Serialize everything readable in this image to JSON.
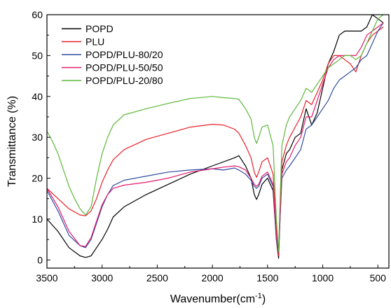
{
  "chart_data": {
    "type": "line",
    "title": "",
    "xlabel": "Wavenumber(cm",
    "xlabel_sup": "-1",
    "xlabel_close": ")",
    "ylabel": "Transmittance (%)",
    "xlim": [
      3500,
      400
    ],
    "ylim": [
      -2,
      60
    ],
    "x_ticks": [
      3500,
      3000,
      2500,
      2000,
      1500,
      1000,
      500
    ],
    "x_tick_labels": [
      "3500",
      "3000",
      "2500",
      "2000",
      "1500",
      "1000",
      "500"
    ],
    "y_ticks": [
      0,
      10,
      20,
      30,
      40,
      50,
      60
    ],
    "y_tick_labels": [
      "0",
      "10",
      "20",
      "30",
      "40",
      "50",
      "60"
    ],
    "grid": false,
    "legend_position": "top-left",
    "series": [
      {
        "name": "POPD",
        "color": "#000000",
        "points": [
          [
            3500,
            10
          ],
          [
            3400,
            7
          ],
          [
            3300,
            3
          ],
          [
            3200,
            1
          ],
          [
            3150,
            0.6
          ],
          [
            3100,
            1
          ],
          [
            3050,
            3
          ],
          [
            3000,
            5
          ],
          [
            2950,
            7.5
          ],
          [
            2900,
            10.5
          ],
          [
            2800,
            13
          ],
          [
            2600,
            16
          ],
          [
            2400,
            18.5
          ],
          [
            2200,
            21
          ],
          [
            2000,
            23
          ],
          [
            1800,
            25
          ],
          [
            1760,
            25.5
          ],
          [
            1700,
            23
          ],
          [
            1650,
            20
          ],
          [
            1620,
            16
          ],
          [
            1600,
            14.8
          ],
          [
            1580,
            16
          ],
          [
            1550,
            18.5
          ],
          [
            1500,
            20
          ],
          [
            1450,
            17
          ],
          [
            1420,
            5
          ],
          [
            1400,
            0.4
          ],
          [
            1390,
            8
          ],
          [
            1370,
            22
          ],
          [
            1330,
            26
          ],
          [
            1300,
            27
          ],
          [
            1250,
            30
          ],
          [
            1200,
            31
          ],
          [
            1150,
            37
          ],
          [
            1100,
            33
          ],
          [
            1050,
            36
          ],
          [
            1000,
            42
          ],
          [
            950,
            48
          ],
          [
            900,
            51
          ],
          [
            850,
            55
          ],
          [
            800,
            56
          ],
          [
            750,
            56
          ],
          [
            700,
            56
          ],
          [
            650,
            56
          ],
          [
            600,
            57
          ],
          [
            550,
            60
          ],
          [
            500,
            59
          ],
          [
            450,
            58
          ]
        ]
      },
      {
        "name": "PLU",
        "color": "#e8202a",
        "points": [
          [
            3500,
            17.5
          ],
          [
            3400,
            15
          ],
          [
            3300,
            12.5
          ],
          [
            3200,
            11
          ],
          [
            3150,
            10.8
          ],
          [
            3100,
            12
          ],
          [
            3050,
            15
          ],
          [
            3000,
            19
          ],
          [
            2950,
            22
          ],
          [
            2900,
            24.5
          ],
          [
            2800,
            27
          ],
          [
            2600,
            29.5
          ],
          [
            2400,
            31
          ],
          [
            2200,
            32.5
          ],
          [
            2000,
            33.2
          ],
          [
            1900,
            33
          ],
          [
            1800,
            32
          ],
          [
            1760,
            31
          ],
          [
            1700,
            28
          ],
          [
            1650,
            25
          ],
          [
            1620,
            21.5
          ],
          [
            1600,
            20.2
          ],
          [
            1580,
            21.5
          ],
          [
            1550,
            24
          ],
          [
            1500,
            25
          ],
          [
            1450,
            21
          ],
          [
            1420,
            8
          ],
          [
            1400,
            1
          ],
          [
            1390,
            10
          ],
          [
            1370,
            24
          ],
          [
            1330,
            28
          ],
          [
            1300,
            30
          ],
          [
            1250,
            32.5
          ],
          [
            1200,
            35
          ],
          [
            1150,
            39
          ],
          [
            1100,
            38
          ],
          [
            1050,
            41
          ],
          [
            1000,
            44
          ],
          [
            950,
            48
          ],
          [
            900,
            50
          ],
          [
            850,
            50
          ],
          [
            800,
            49
          ],
          [
            750,
            48
          ],
          [
            700,
            46
          ],
          [
            650,
            50
          ],
          [
            600,
            53
          ],
          [
            550,
            55
          ],
          [
            500,
            56
          ],
          [
            450,
            57
          ]
        ]
      },
      {
        "name": "POPD/PLU-80/20",
        "color": "#2f4da0",
        "points": [
          [
            3500,
            17
          ],
          [
            3400,
            12
          ],
          [
            3300,
            6
          ],
          [
            3200,
            3.5
          ],
          [
            3150,
            3
          ],
          [
            3100,
            5
          ],
          [
            3050,
            9
          ],
          [
            3000,
            13
          ],
          [
            2950,
            16
          ],
          [
            2900,
            18.2
          ],
          [
            2800,
            19.5
          ],
          [
            2600,
            20.5
          ],
          [
            2400,
            21.5
          ],
          [
            2200,
            22
          ],
          [
            2000,
            22.3
          ],
          [
            1900,
            22
          ],
          [
            1800,
            22.5
          ],
          [
            1760,
            22
          ],
          [
            1700,
            21
          ],
          [
            1650,
            19.5
          ],
          [
            1620,
            18
          ],
          [
            1600,
            17.5
          ],
          [
            1580,
            18
          ],
          [
            1550,
            20
          ],
          [
            1500,
            21
          ],
          [
            1450,
            18
          ],
          [
            1420,
            5
          ],
          [
            1400,
            2
          ],
          [
            1390,
            8
          ],
          [
            1370,
            20
          ],
          [
            1330,
            22
          ],
          [
            1300,
            23
          ],
          [
            1250,
            25
          ],
          [
            1200,
            27
          ],
          [
            1150,
            32
          ],
          [
            1100,
            33
          ],
          [
            1050,
            35
          ],
          [
            1000,
            37
          ],
          [
            950,
            39
          ],
          [
            900,
            42
          ],
          [
            850,
            44
          ],
          [
            800,
            45
          ],
          [
            750,
            46
          ],
          [
            700,
            47
          ],
          [
            650,
            49
          ],
          [
            600,
            50
          ],
          [
            550,
            53
          ],
          [
            500,
            56
          ],
          [
            450,
            58
          ]
        ]
      },
      {
        "name": "POPD/PLU-50/50",
        "color": "#e5196b",
        "points": [
          [
            3500,
            17.5
          ],
          [
            3400,
            13
          ],
          [
            3300,
            7
          ],
          [
            3200,
            3.5
          ],
          [
            3150,
            3.3
          ],
          [
            3100,
            5.5
          ],
          [
            3050,
            9.5
          ],
          [
            3000,
            13.5
          ],
          [
            2950,
            16
          ],
          [
            2900,
            17.5
          ],
          [
            2800,
            18.3
          ],
          [
            2600,
            19
          ],
          [
            2400,
            20
          ],
          [
            2200,
            21.5
          ],
          [
            2000,
            22.3
          ],
          [
            1900,
            22.7
          ],
          [
            1800,
            23
          ],
          [
            1760,
            22.8
          ],
          [
            1700,
            22
          ],
          [
            1650,
            20
          ],
          [
            1620,
            18.5
          ],
          [
            1600,
            18
          ],
          [
            1580,
            18.5
          ],
          [
            1550,
            20.5
          ],
          [
            1500,
            21.5
          ],
          [
            1450,
            18.5
          ],
          [
            1420,
            6
          ],
          [
            1400,
            1.5
          ],
          [
            1390,
            9
          ],
          [
            1370,
            21
          ],
          [
            1330,
            24
          ],
          [
            1300,
            25
          ],
          [
            1250,
            28
          ],
          [
            1200,
            30
          ],
          [
            1150,
            35
          ],
          [
            1100,
            35
          ],
          [
            1050,
            39
          ],
          [
            1000,
            43
          ],
          [
            950,
            47
          ],
          [
            900,
            49
          ],
          [
            850,
            50
          ],
          [
            800,
            50
          ],
          [
            750,
            50
          ],
          [
            700,
            50
          ],
          [
            650,
            52
          ],
          [
            600,
            55
          ],
          [
            550,
            56
          ],
          [
            500,
            57
          ],
          [
            450,
            58
          ]
        ]
      },
      {
        "name": "POPD/PLU-20/80",
        "color": "#5cb83a",
        "points": [
          [
            3500,
            31.5
          ],
          [
            3450,
            29
          ],
          [
            3400,
            26
          ],
          [
            3350,
            22
          ],
          [
            3300,
            18
          ],
          [
            3250,
            15
          ],
          [
            3200,
            12.5
          ],
          [
            3150,
            11
          ],
          [
            3100,
            13
          ],
          [
            3050,
            20
          ],
          [
            3000,
            26
          ],
          [
            2950,
            30
          ],
          [
            2900,
            33
          ],
          [
            2800,
            35.5
          ],
          [
            2600,
            37
          ],
          [
            2400,
            38.3
          ],
          [
            2200,
            39.5
          ],
          [
            2000,
            40
          ],
          [
            1900,
            39.7
          ],
          [
            1800,
            39.5
          ],
          [
            1760,
            39.3
          ],
          [
            1700,
            37
          ],
          [
            1650,
            34.5
          ],
          [
            1620,
            30
          ],
          [
            1600,
            28.5
          ],
          [
            1580,
            30
          ],
          [
            1550,
            32.5
          ],
          [
            1500,
            33
          ],
          [
            1450,
            28
          ],
          [
            1420,
            10
          ],
          [
            1400,
            2
          ],
          [
            1390,
            12
          ],
          [
            1370,
            28
          ],
          [
            1330,
            33
          ],
          [
            1300,
            35
          ],
          [
            1250,
            37
          ],
          [
            1200,
            39
          ],
          [
            1150,
            42
          ],
          [
            1100,
            41
          ],
          [
            1050,
            43
          ],
          [
            1000,
            45
          ],
          [
            950,
            47
          ],
          [
            900,
            48
          ],
          [
            850,
            49
          ],
          [
            800,
            50
          ],
          [
            750,
            50
          ],
          [
            700,
            49
          ],
          [
            650,
            50
          ],
          [
            600,
            53
          ],
          [
            550,
            56
          ],
          [
            500,
            59
          ],
          [
            450,
            60
          ]
        ]
      }
    ]
  }
}
